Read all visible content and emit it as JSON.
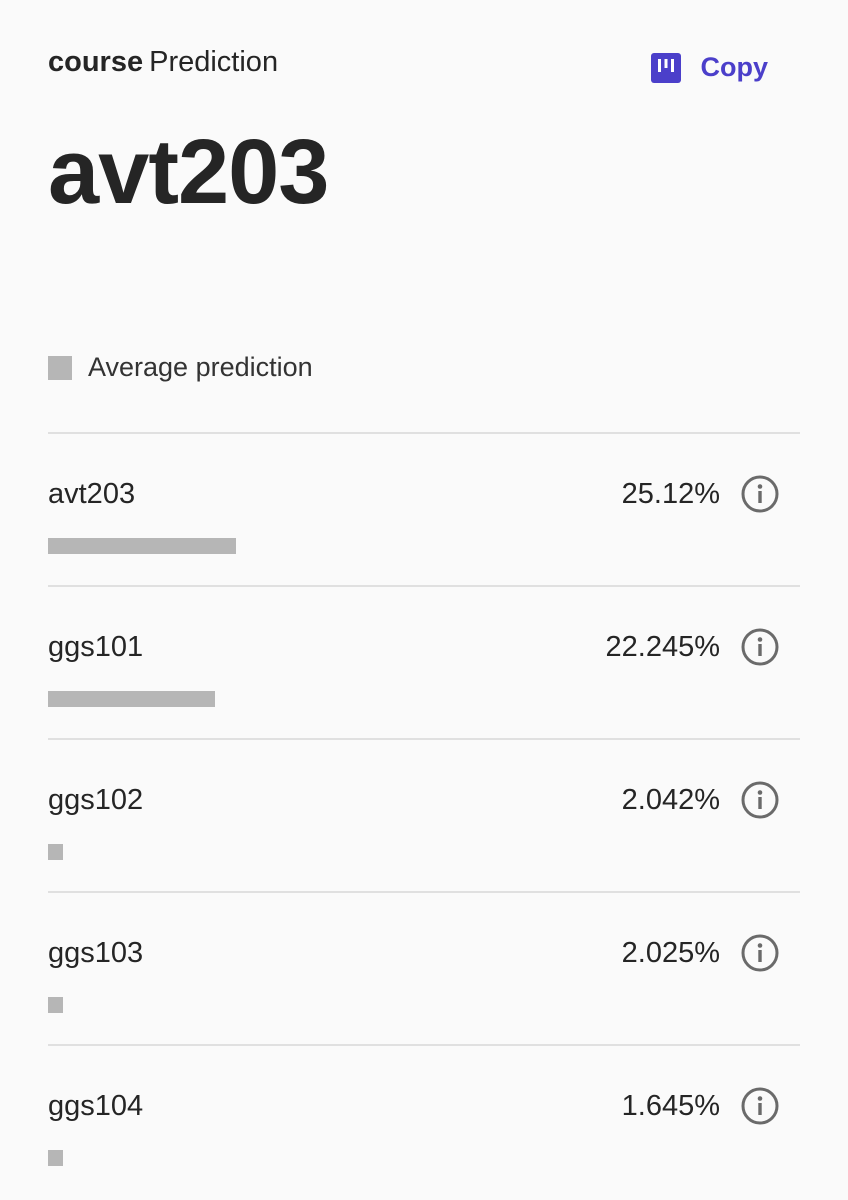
{
  "header": {
    "field": "course",
    "label": "Prediction",
    "copy_label": "Copy"
  },
  "prediction": {
    "value": "avt203"
  },
  "legend": {
    "label": "Average prediction",
    "color": "#b6b6b6"
  },
  "colors": {
    "accent": "#4b3fca",
    "bar": "#b6b6b6"
  },
  "rows": [
    {
      "name": "avt203",
      "value_text": "25.12%",
      "value": 25.12,
      "icon": "info-icon"
    },
    {
      "name": "ggs101",
      "value_text": "22.245%",
      "value": 22.245,
      "icon": "info-icon"
    },
    {
      "name": "ggs102",
      "value_text": "2.042%",
      "value": 2.042,
      "icon": "info-icon"
    },
    {
      "name": "ggs103",
      "value_text": "2.025%",
      "value": 2.025,
      "icon": "info-icon"
    },
    {
      "name": "ggs104",
      "value_text": "1.645%",
      "value": 1.645,
      "icon": "info-icon"
    }
  ]
}
